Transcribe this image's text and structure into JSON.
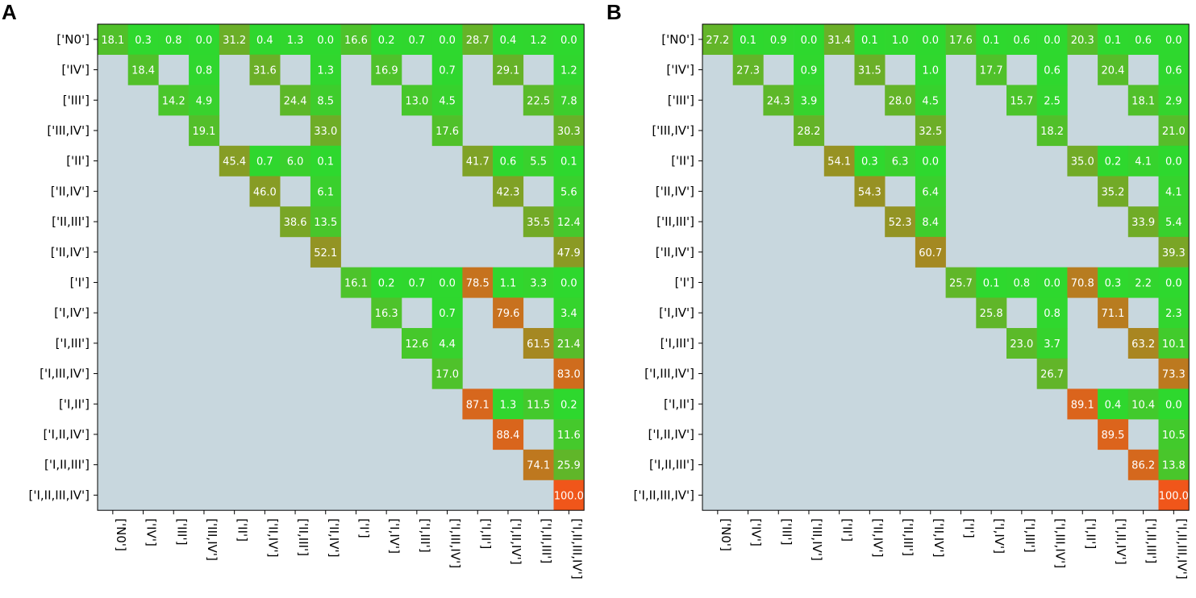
{
  "labels": [
    "['N0']",
    "['IV']",
    "['III']",
    "['III,IV']",
    "['II']",
    "['II,IV']",
    "['II,III']",
    "['II,IV']",
    "['I']",
    "['I,IV']",
    "['I,III']",
    "['I,III,IV']",
    "['I,II']",
    "['I,II,IV']",
    "['I,II,III']",
    "['I,II,III,IV']"
  ],
  "colors": {
    "background": "#c8d7de",
    "low": "#2ed82e",
    "high": "#f0561a"
  },
  "chart_data": [
    {
      "type": "heatmap",
      "panel_label": "A",
      "title": "",
      "value_range": [
        0,
        100
      ],
      "cells": [
        {
          "r": 0,
          "c": 0,
          "v": "18.1"
        },
        {
          "r": 0,
          "c": 1,
          "v": "0.3"
        },
        {
          "r": 0,
          "c": 2,
          "v": "0.8"
        },
        {
          "r": 0,
          "c": 3,
          "v": "0.0"
        },
        {
          "r": 0,
          "c": 4,
          "v": "31.2"
        },
        {
          "r": 0,
          "c": 5,
          "v": "0.4"
        },
        {
          "r": 0,
          "c": 6,
          "v": "1.3"
        },
        {
          "r": 0,
          "c": 7,
          "v": "0.0"
        },
        {
          "r": 0,
          "c": 8,
          "v": "16.6"
        },
        {
          "r": 0,
          "c": 9,
          "v": "0.2"
        },
        {
          "r": 0,
          "c": 10,
          "v": "0.7"
        },
        {
          "r": 0,
          "c": 11,
          "v": "0.0"
        },
        {
          "r": 0,
          "c": 12,
          "v": "28.7"
        },
        {
          "r": 0,
          "c": 13,
          "v": "0.4"
        },
        {
          "r": 0,
          "c": 14,
          "v": "1.2"
        },
        {
          "r": 0,
          "c": 15,
          "v": "0.0"
        },
        {
          "r": 1,
          "c": 1,
          "v": "18.4"
        },
        {
          "r": 1,
          "c": 3,
          "v": "0.8"
        },
        {
          "r": 1,
          "c": 5,
          "v": "31.6"
        },
        {
          "r": 1,
          "c": 7,
          "v": "1.3"
        },
        {
          "r": 1,
          "c": 9,
          "v": "16.9"
        },
        {
          "r": 1,
          "c": 11,
          "v": "0.7"
        },
        {
          "r": 1,
          "c": 13,
          "v": "29.1"
        },
        {
          "r": 1,
          "c": 15,
          "v": "1.2"
        },
        {
          "r": 2,
          "c": 2,
          "v": "14.2"
        },
        {
          "r": 2,
          "c": 3,
          "v": "4.9"
        },
        {
          "r": 2,
          "c": 6,
          "v": "24.4"
        },
        {
          "r": 2,
          "c": 7,
          "v": "8.5"
        },
        {
          "r": 2,
          "c": 10,
          "v": "13.0"
        },
        {
          "r": 2,
          "c": 11,
          "v": "4.5"
        },
        {
          "r": 2,
          "c": 14,
          "v": "22.5"
        },
        {
          "r": 2,
          "c": 15,
          "v": "7.8"
        },
        {
          "r": 3,
          "c": 3,
          "v": "19.1"
        },
        {
          "r": 3,
          "c": 7,
          "v": "33.0"
        },
        {
          "r": 3,
          "c": 11,
          "v": "17.6"
        },
        {
          "r": 3,
          "c": 15,
          "v": "30.3"
        },
        {
          "r": 4,
          "c": 4,
          "v": "45.4"
        },
        {
          "r": 4,
          "c": 5,
          "v": "0.7"
        },
        {
          "r": 4,
          "c": 6,
          "v": "6.0"
        },
        {
          "r": 4,
          "c": 7,
          "v": "0.1"
        },
        {
          "r": 4,
          "c": 12,
          "v": "41.7"
        },
        {
          "r": 4,
          "c": 13,
          "v": "0.6"
        },
        {
          "r": 4,
          "c": 14,
          "v": "5.5"
        },
        {
          "r": 4,
          "c": 15,
          "v": "0.1"
        },
        {
          "r": 5,
          "c": 5,
          "v": "46.0"
        },
        {
          "r": 5,
          "c": 7,
          "v": "6.1"
        },
        {
          "r": 5,
          "c": 13,
          "v": "42.3"
        },
        {
          "r": 5,
          "c": 15,
          "v": "5.6"
        },
        {
          "r": 6,
          "c": 6,
          "v": "38.6"
        },
        {
          "r": 6,
          "c": 7,
          "v": "13.5"
        },
        {
          "r": 6,
          "c": 14,
          "v": "35.5"
        },
        {
          "r": 6,
          "c": 15,
          "v": "12.4"
        },
        {
          "r": 7,
          "c": 7,
          "v": "52.1"
        },
        {
          "r": 7,
          "c": 15,
          "v": "47.9"
        },
        {
          "r": 8,
          "c": 8,
          "v": "16.1"
        },
        {
          "r": 8,
          "c": 9,
          "v": "0.2"
        },
        {
          "r": 8,
          "c": 10,
          "v": "0.7"
        },
        {
          "r": 8,
          "c": 11,
          "v": "0.0"
        },
        {
          "r": 8,
          "c": 12,
          "v": "78.5"
        },
        {
          "r": 8,
          "c": 13,
          "v": "1.1"
        },
        {
          "r": 8,
          "c": 14,
          "v": "3.3"
        },
        {
          "r": 8,
          "c": 15,
          "v": "0.0"
        },
        {
          "r": 9,
          "c": 9,
          "v": "16.3"
        },
        {
          "r": 9,
          "c": 11,
          "v": "0.7"
        },
        {
          "r": 9,
          "c": 13,
          "v": "79.6"
        },
        {
          "r": 9,
          "c": 15,
          "v": "3.4"
        },
        {
          "r": 10,
          "c": 10,
          "v": "12.6"
        },
        {
          "r": 10,
          "c": 11,
          "v": "4.4"
        },
        {
          "r": 10,
          "c": 14,
          "v": "61.5"
        },
        {
          "r": 10,
          "c": 15,
          "v": "21.4"
        },
        {
          "r": 11,
          "c": 11,
          "v": "17.0"
        },
        {
          "r": 11,
          "c": 15,
          "v": "83.0"
        },
        {
          "r": 12,
          "c": 12,
          "v": "87.1"
        },
        {
          "r": 12,
          "c": 13,
          "v": "1.3"
        },
        {
          "r": 12,
          "c": 14,
          "v": "11.5"
        },
        {
          "r": 12,
          "c": 15,
          "v": "0.2"
        },
        {
          "r": 13,
          "c": 13,
          "v": "88.4"
        },
        {
          "r": 13,
          "c": 15,
          "v": "11.6"
        },
        {
          "r": 14,
          "c": 14,
          "v": "74.1"
        },
        {
          "r": 14,
          "c": 15,
          "v": "25.9"
        },
        {
          "r": 15,
          "c": 15,
          "v": "100.0"
        }
      ]
    },
    {
      "type": "heatmap",
      "panel_label": "B",
      "title": "",
      "value_range": [
        0,
        100
      ],
      "cells": [
        {
          "r": 0,
          "c": 0,
          "v": "27.2"
        },
        {
          "r": 0,
          "c": 1,
          "v": "0.1"
        },
        {
          "r": 0,
          "c": 2,
          "v": "0.9"
        },
        {
          "r": 0,
          "c": 3,
          "v": "0.0"
        },
        {
          "r": 0,
          "c": 4,
          "v": "31.4"
        },
        {
          "r": 0,
          "c": 5,
          "v": "0.1"
        },
        {
          "r": 0,
          "c": 6,
          "v": "1.0"
        },
        {
          "r": 0,
          "c": 7,
          "v": "0.0"
        },
        {
          "r": 0,
          "c": 8,
          "v": "17.6"
        },
        {
          "r": 0,
          "c": 9,
          "v": "0.1"
        },
        {
          "r": 0,
          "c": 10,
          "v": "0.6"
        },
        {
          "r": 0,
          "c": 11,
          "v": "0.0"
        },
        {
          "r": 0,
          "c": 12,
          "v": "20.3"
        },
        {
          "r": 0,
          "c": 13,
          "v": "0.1"
        },
        {
          "r": 0,
          "c": 14,
          "v": "0.6"
        },
        {
          "r": 0,
          "c": 15,
          "v": "0.0"
        },
        {
          "r": 1,
          "c": 1,
          "v": "27.3"
        },
        {
          "r": 1,
          "c": 3,
          "v": "0.9"
        },
        {
          "r": 1,
          "c": 5,
          "v": "31.5"
        },
        {
          "r": 1,
          "c": 7,
          "v": "1.0"
        },
        {
          "r": 1,
          "c": 9,
          "v": "17.7"
        },
        {
          "r": 1,
          "c": 11,
          "v": "0.6"
        },
        {
          "r": 1,
          "c": 13,
          "v": "20.4"
        },
        {
          "r": 1,
          "c": 15,
          "v": "0.6"
        },
        {
          "r": 2,
          "c": 2,
          "v": "24.3"
        },
        {
          "r": 2,
          "c": 3,
          "v": "3.9"
        },
        {
          "r": 2,
          "c": 6,
          "v": "28.0"
        },
        {
          "r": 2,
          "c": 7,
          "v": "4.5"
        },
        {
          "r": 2,
          "c": 10,
          "v": "15.7"
        },
        {
          "r": 2,
          "c": 11,
          "v": "2.5"
        },
        {
          "r": 2,
          "c": 14,
          "v": "18.1"
        },
        {
          "r": 2,
          "c": 15,
          "v": "2.9"
        },
        {
          "r": 3,
          "c": 3,
          "v": "28.2"
        },
        {
          "r": 3,
          "c": 7,
          "v": "32.5"
        },
        {
          "r": 3,
          "c": 11,
          "v": "18.2"
        },
        {
          "r": 3,
          "c": 15,
          "v": "21.0"
        },
        {
          "r": 4,
          "c": 4,
          "v": "54.1"
        },
        {
          "r": 4,
          "c": 5,
          "v": "0.3"
        },
        {
          "r": 4,
          "c": 6,
          "v": "6.3"
        },
        {
          "r": 4,
          "c": 7,
          "v": "0.0"
        },
        {
          "r": 4,
          "c": 12,
          "v": "35.0"
        },
        {
          "r": 4,
          "c": 13,
          "v": "0.2"
        },
        {
          "r": 4,
          "c": 14,
          "v": "4.1"
        },
        {
          "r": 4,
          "c": 15,
          "v": "0.0"
        },
        {
          "r": 5,
          "c": 5,
          "v": "54.3"
        },
        {
          "r": 5,
          "c": 7,
          "v": "6.4"
        },
        {
          "r": 5,
          "c": 13,
          "v": "35.2"
        },
        {
          "r": 5,
          "c": 15,
          "v": "4.1"
        },
        {
          "r": 6,
          "c": 6,
          "v": "52.3"
        },
        {
          "r": 6,
          "c": 7,
          "v": "8.4"
        },
        {
          "r": 6,
          "c": 14,
          "v": "33.9"
        },
        {
          "r": 6,
          "c": 15,
          "v": "5.4"
        },
        {
          "r": 7,
          "c": 7,
          "v": "60.7"
        },
        {
          "r": 7,
          "c": 15,
          "v": "39.3"
        },
        {
          "r": 8,
          "c": 8,
          "v": "25.7"
        },
        {
          "r": 8,
          "c": 9,
          "v": "0.1"
        },
        {
          "r": 8,
          "c": 10,
          "v": "0.8"
        },
        {
          "r": 8,
          "c": 11,
          "v": "0.0"
        },
        {
          "r": 8,
          "c": 12,
          "v": "70.8"
        },
        {
          "r": 8,
          "c": 13,
          "v": "0.3"
        },
        {
          "r": 8,
          "c": 14,
          "v": "2.2"
        },
        {
          "r": 8,
          "c": 15,
          "v": "0.0"
        },
        {
          "r": 9,
          "c": 9,
          "v": "25.8"
        },
        {
          "r": 9,
          "c": 11,
          "v": "0.8"
        },
        {
          "r": 9,
          "c": 13,
          "v": "71.1"
        },
        {
          "r": 9,
          "c": 15,
          "v": "2.3"
        },
        {
          "r": 10,
          "c": 10,
          "v": "23.0"
        },
        {
          "r": 10,
          "c": 11,
          "v": "3.7"
        },
        {
          "r": 10,
          "c": 14,
          "v": "63.2"
        },
        {
          "r": 10,
          "c": 15,
          "v": "10.1"
        },
        {
          "r": 11,
          "c": 11,
          "v": "26.7"
        },
        {
          "r": 11,
          "c": 15,
          "v": "73.3"
        },
        {
          "r": 12,
          "c": 12,
          "v": "89.1"
        },
        {
          "r": 12,
          "c": 13,
          "v": "0.4"
        },
        {
          "r": 12,
          "c": 14,
          "v": "10.4"
        },
        {
          "r": 12,
          "c": 15,
          "v": "0.0"
        },
        {
          "r": 13,
          "c": 13,
          "v": "89.5"
        },
        {
          "r": 13,
          "c": 15,
          "v": "10.5"
        },
        {
          "r": 14,
          "c": 14,
          "v": "86.2"
        },
        {
          "r": 14,
          "c": 15,
          "v": "13.8"
        },
        {
          "r": 15,
          "c": 15,
          "v": "100.0"
        }
      ]
    }
  ]
}
